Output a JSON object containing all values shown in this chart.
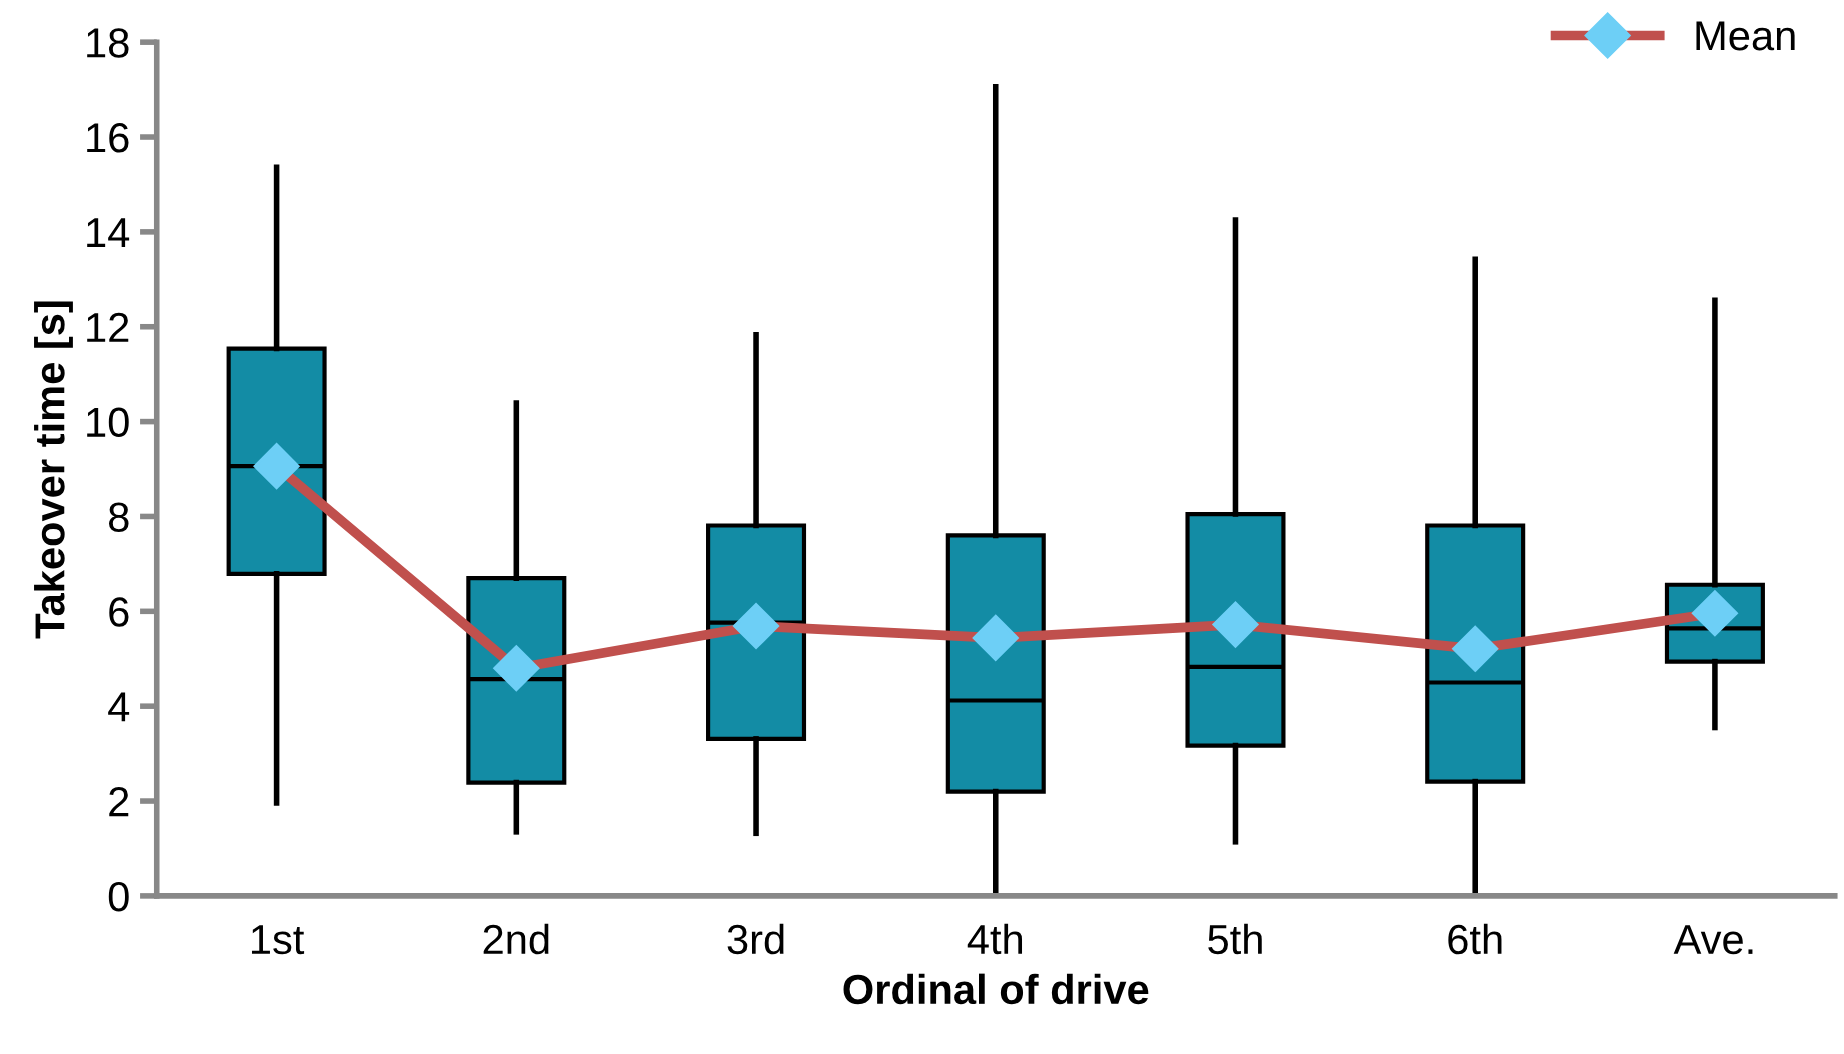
{
  "chart_data": {
    "type": "box",
    "xlabel": "Ordinal of drive",
    "ylabel": "Takeover time [s]",
    "categories": [
      "1st",
      "2nd",
      "3rd",
      "4th",
      "5th",
      "6th",
      "Ave."
    ],
    "ylim": [
      0,
      18
    ],
    "yticks": [
      0,
      2,
      4,
      6,
      8,
      10,
      12,
      14,
      16,
      18
    ],
    "grid": false,
    "legend": "top right",
    "series": [
      {
        "color": "#138ca5",
        "boxes": [
          {
            "low": 1.96,
            "q1": 6.79,
            "median": 9.06,
            "q3": 11.54,
            "high": 15.36
          },
          {
            "low": 1.35,
            "q1": 2.39,
            "median": 4.57,
            "q3": 6.7,
            "high": 10.39
          },
          {
            "low": 1.32,
            "q1": 3.31,
            "median": 5.76,
            "q3": 7.81,
            "high": 11.83
          },
          {
            "low": 0,
            "q1": 2.2,
            "median": 4.12,
            "q3": 7.6,
            "high": 17.06
          },
          {
            "low": 1.14,
            "q1": 3.17,
            "median": 4.83,
            "q3": 8.05,
            "high": 14.25
          },
          {
            "low": 0,
            "q1": 2.41,
            "median": 4.5,
            "q3": 7.81,
            "high": 13.42
          },
          {
            "low": 3.55,
            "q1": 4.94,
            "median": 5.64,
            "q3": 6.56,
            "high": 12.56
          }
        ]
      },
      {
        "type": "line",
        "name": "Mean",
        "color": "#c0504d",
        "marker": "diamond",
        "line_style": "solid",
        "values": [
          9.06,
          4.8,
          5.69,
          5.44,
          5.72,
          5.21,
          5.96
        ]
      }
    ]
  }
}
